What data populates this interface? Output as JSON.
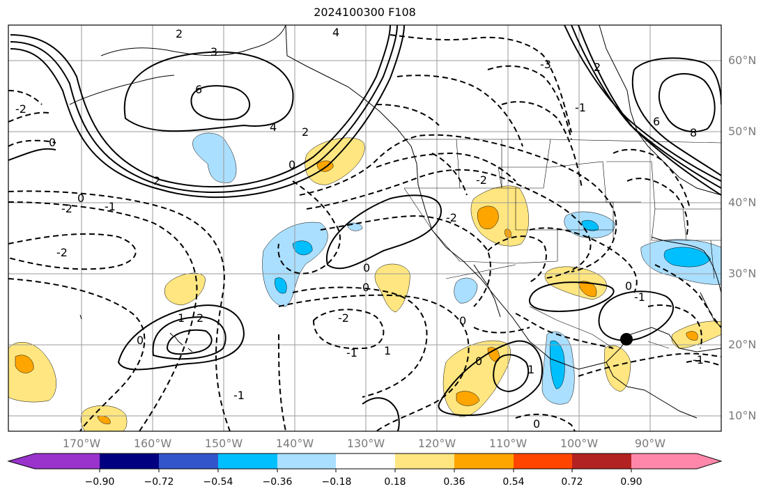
{
  "title": "2024100300 F108",
  "lat_labels": [
    "60°N",
    "50°N",
    "40°N",
    "30°N",
    "20°N",
    "10°N"
  ],
  "lon_labels": [
    "170°W",
    "160°W",
    "150°W",
    "140°W",
    "130°W",
    "120°W",
    "110°W",
    "100°W",
    "90°W"
  ],
  "colorbar": {
    "ticks": [
      "−0.90",
      "−0.72",
      "−0.54",
      "−0.36",
      "−0.18",
      "0.18",
      "0.36",
      "0.54",
      "0.72",
      "0.90"
    ],
    "colors": [
      "#9933cc",
      "#000080",
      "#3355cc",
      "#00bfff",
      "#aadfff",
      "#ffffff",
      "#ffe680",
      "#ffa500",
      "#ff4500",
      "#b22222",
      "#ff88aa"
    ]
  },
  "contour_labels": [
    {
      "text": "2",
      "color": "#000"
    },
    {
      "text": "4",
      "color": "#000"
    },
    {
      "text": "3",
      "color": "#000"
    },
    {
      "text": "6",
      "color": "#000"
    },
    {
      "text": "4",
      "color": "#000"
    },
    {
      "text": "2",
      "color": "#000"
    },
    {
      "text": "0",
      "color": "#000"
    },
    {
      "text": "2",
      "color": "#000"
    },
    {
      "text": "-1",
      "color": "#000"
    },
    {
      "text": "-2",
      "color": "#000"
    },
    {
      "text": "0",
      "color": "#000"
    },
    {
      "text": "1",
      "color": "#000"
    },
    {
      "text": "2",
      "color": "#000"
    },
    {
      "text": "0",
      "color": "#000"
    },
    {
      "text": "-2",
      "color": "#000"
    },
    {
      "text": "-1",
      "color": "#000"
    },
    {
      "text": "-2",
      "color": "#000"
    },
    {
      "text": "0",
      "color": "#000"
    },
    {
      "text": "1",
      "color": "#000"
    },
    {
      "text": "0",
      "color": "#000"
    },
    {
      "text": "1",
      "color": "#000"
    },
    {
      "text": "0",
      "color": "#000"
    },
    {
      "text": "-1",
      "color": "#000"
    },
    {
      "text": "0",
      "color": "#000"
    },
    {
      "text": "-2",
      "color": "#000"
    },
    {
      "text": "6",
      "color": "#000"
    },
    {
      "text": "8",
      "color": "#000"
    },
    {
      "text": "-3",
      "color": "#000"
    },
    {
      "text": "0",
      "color": "#000"
    },
    {
      "text": "-1",
      "color": "#000"
    },
    {
      "text": "2",
      "color": "#000"
    },
    {
      "text": "-2",
      "color": "#000"
    },
    {
      "text": "0",
      "color": "#000"
    },
    {
      "text": "0",
      "color": "#000"
    },
    {
      "text": "-1",
      "color": "#000"
    },
    {
      "text": "-2",
      "color": "#000"
    },
    {
      "text": "-1",
      "color": "#000"
    }
  ]
}
